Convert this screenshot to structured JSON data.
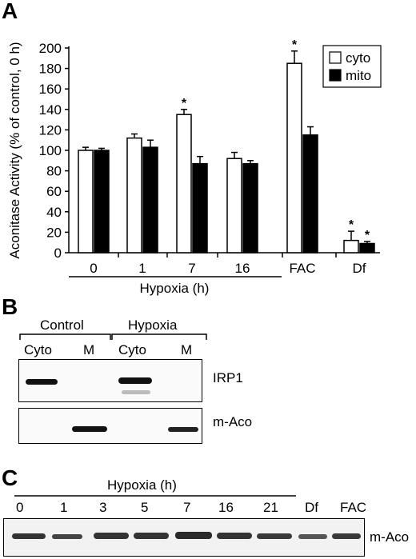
{
  "panels": {
    "a": "A",
    "b": "B",
    "c": "C"
  },
  "chart_data": {
    "type": "bar",
    "categories": [
      "0",
      "1",
      "7",
      "16",
      "FAC",
      "Df"
    ],
    "series": [
      {
        "name": "cyto",
        "values": [
          100,
          112,
          135,
          92,
          185,
          12
        ],
        "errors": [
          3,
          4,
          5,
          6,
          12,
          9
        ],
        "color": "#ffffff"
      },
      {
        "name": "mito",
        "values": [
          100,
          103,
          87,
          87,
          115,
          9
        ],
        "errors": [
          2,
          7,
          7,
          3,
          8,
          2
        ],
        "color": "#000000"
      }
    ],
    "significance": [
      {
        "category": "7",
        "series": "cyto",
        "mark": "*"
      },
      {
        "category": "FAC",
        "series": "cyto",
        "mark": "*"
      },
      {
        "category": "Df",
        "series": "cyto",
        "mark": "*"
      },
      {
        "category": "Df",
        "series": "mito",
        "mark": "*"
      }
    ],
    "ylabel": "Aconitase Activity (% of control, 0 h)",
    "yticks": [
      0,
      20,
      40,
      60,
      80,
      100,
      120,
      140,
      160,
      180,
      200
    ],
    "ylim": [
      0,
      200
    ],
    "group_label": "Hypoxia (h)",
    "legend_position": "top-right"
  },
  "blot_b": {
    "group_control": "Control",
    "group_hypoxia": "Hypoxia",
    "lanes": [
      "Cyto",
      "M",
      "Cyto",
      "M"
    ],
    "row1_label": "IRP1",
    "row2_label": "m-Aco"
  },
  "blot_c": {
    "group_label": "Hypoxia (h)",
    "lanes": [
      "0",
      "1",
      "3",
      "5",
      "7",
      "16",
      "21",
      "Df",
      "FAC"
    ],
    "row_label": "m-Aco"
  }
}
